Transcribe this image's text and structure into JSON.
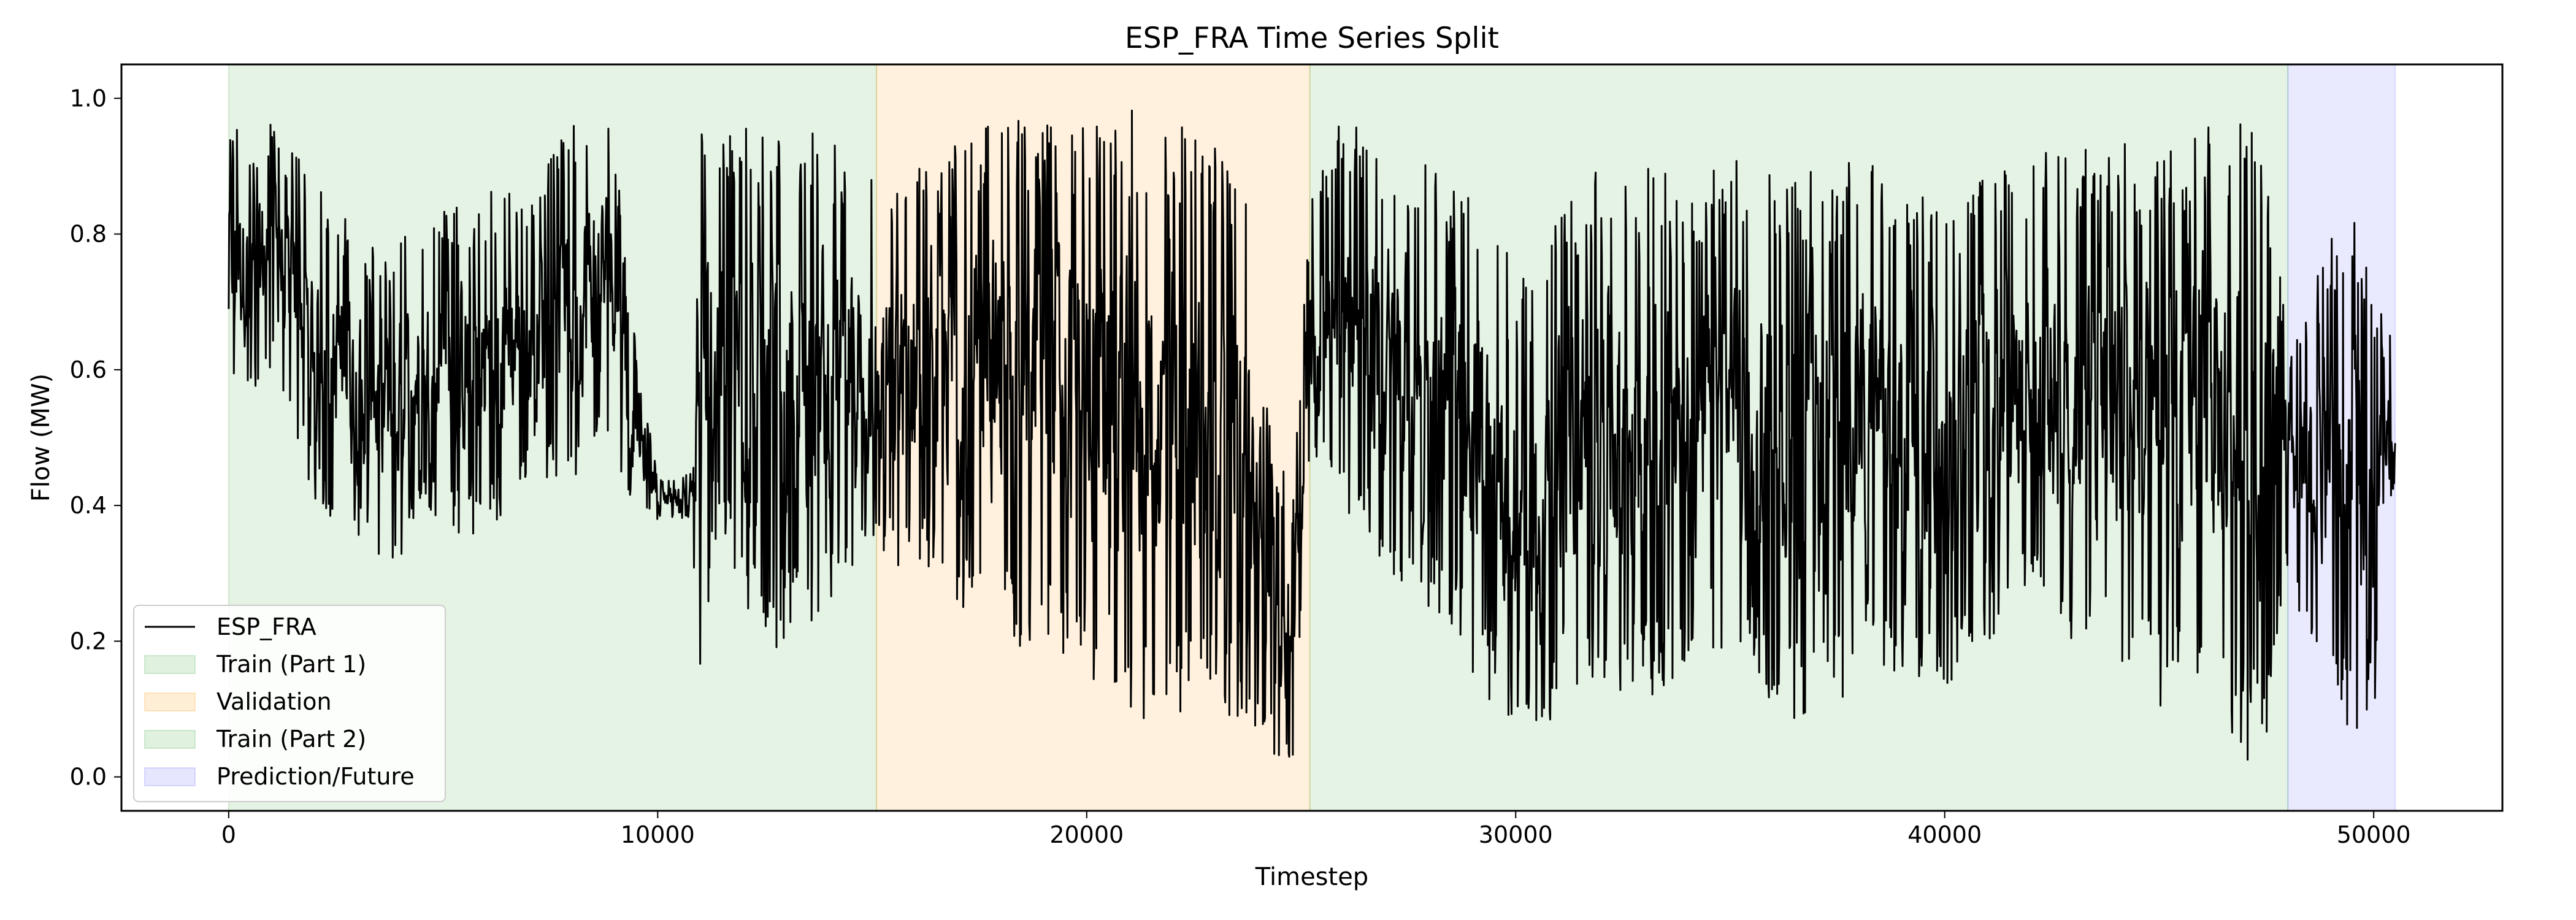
{
  "chart_data": {
    "type": "line",
    "title": "ESP_FRA Time Series Split",
    "xlabel": "Timestep",
    "ylabel": "Flow (MW)",
    "xlim": [
      -2500,
      53000
    ],
    "ylim": [
      -0.05,
      1.05
    ],
    "xticks": [
      0,
      10000,
      20000,
      30000,
      40000,
      50000
    ],
    "xtick_labels": [
      "0",
      "10000",
      "20000",
      "30000",
      "40000",
      "50000"
    ],
    "yticks": [
      0.0,
      0.2,
      0.4,
      0.6,
      0.8,
      1.0
    ],
    "ytick_labels": [
      "0.0",
      "0.2",
      "0.4",
      "0.6",
      "0.8",
      "1.0"
    ],
    "grid": false,
    "legend_position": "lower-left",
    "series": [
      {
        "name": "ESP_FRA",
        "color": "#000000",
        "x_start": 0,
        "x_end": 50500,
        "envelope": {
          "x": [
            0,
            500,
            1000,
            2000,
            3000,
            3800,
            4500,
            5500,
            6500,
            7000,
            8000,
            8700,
            9000,
            9300,
            10000,
            10800,
            11000,
            11400,
            12000,
            12500,
            13000,
            14000,
            15100,
            16000,
            17000,
            18000,
            19000,
            20000,
            21000,
            22000,
            23000,
            23700,
            24200,
            24800,
            25200,
            26000,
            27000,
            28000,
            29000,
            30000,
            30500,
            31000,
            32000,
            33000,
            34000,
            35000,
            36000,
            37000,
            38000,
            39000,
            40000,
            41000,
            42000,
            43000,
            44000,
            45000,
            46000,
            47000,
            47500,
            48000,
            48500,
            49000,
            49500,
            50000,
            50500
          ],
          "low": [
            0.57,
            0.55,
            0.6,
            0.4,
            0.35,
            0.28,
            0.4,
            0.35,
            0.38,
            0.45,
            0.42,
            0.5,
            0.52,
            0.38,
            0.38,
            0.38,
            0.05,
            0.38,
            0.25,
            0.18,
            0.2,
            0.25,
            0.3,
            0.3,
            0.25,
            0.2,
            0.18,
            0.15,
            0.08,
            0.08,
            0.1,
            0.08,
            0.02,
            0.02,
            0.45,
            0.4,
            0.3,
            0.25,
            0.15,
            0.05,
            0.02,
            0.1,
            0.15,
            0.1,
            0.15,
            0.2,
            0.1,
            0.07,
            0.12,
            0.15,
            0.12,
            0.18,
            0.25,
            0.2,
            0.15,
            0.1,
            0.15,
            0.02,
            0.05,
            0.3,
            0.15,
            0.15,
            0.05,
            0.08,
            0.45
          ],
          "high": [
            1.0,
            0.93,
            0.97,
            0.88,
            0.8,
            0.78,
            0.82,
            0.85,
            0.87,
            0.85,
            0.97,
            1.0,
            0.95,
            0.72,
            0.44,
            0.45,
            0.98,
            0.97,
            0.97,
            0.95,
            0.97,
            0.95,
            0.88,
            0.95,
            0.98,
            0.97,
            0.98,
            0.97,
            0.99,
            0.97,
            0.95,
            0.88,
            0.55,
            0.4,
            0.85,
            0.98,
            0.92,
            0.9,
            0.88,
            0.75,
            0.72,
            0.85,
            0.9,
            0.92,
            0.88,
            0.92,
            0.9,
            0.9,
            0.92,
            0.88,
            0.86,
            0.9,
            0.92,
            0.93,
            0.94,
            0.92,
            0.97,
            0.98,
            0.9,
            0.65,
            0.7,
            0.8,
            0.85,
            0.7,
            0.65
          ]
        }
      }
    ],
    "spans": [
      {
        "name": "Train (Part 1)",
        "x0": 0,
        "x1": 15100,
        "color": "#2ca02c",
        "alpha": 0.12
      },
      {
        "name": "Validation",
        "x0": 15100,
        "x1": 25200,
        "color": "#ff9f1a",
        "alpha": 0.15
      },
      {
        "name": "Train (Part 2)",
        "x0": 25200,
        "x1": 48000,
        "color": "#2ca02c",
        "alpha": 0.12
      },
      {
        "name": "Prediction/Future",
        "x0": 48000,
        "x1": 50500,
        "color": "#3333ff",
        "alpha": 0.1
      }
    ],
    "legend": [
      "ESP_FRA",
      "Train (Part 1)",
      "Validation",
      "Train (Part 2)",
      "Prediction/Future"
    ]
  }
}
